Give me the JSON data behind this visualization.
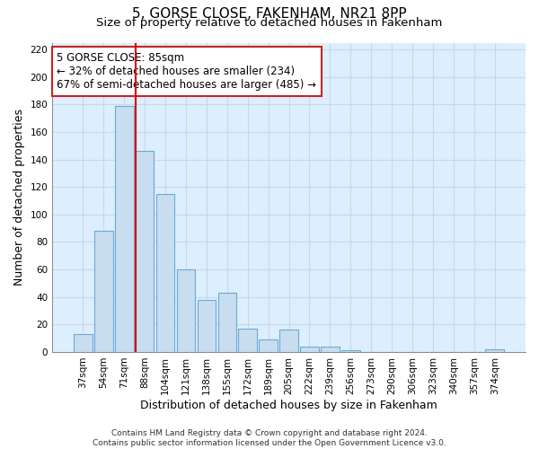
{
  "title": "5, GORSE CLOSE, FAKENHAM, NR21 8PP",
  "subtitle": "Size of property relative to detached houses in Fakenham",
  "xlabel": "Distribution of detached houses by size in Fakenham",
  "ylabel": "Number of detached properties",
  "bar_labels": [
    "37sqm",
    "54sqm",
    "71sqm",
    "88sqm",
    "104sqm",
    "121sqm",
    "138sqm",
    "155sqm",
    "172sqm",
    "189sqm",
    "205sqm",
    "222sqm",
    "239sqm",
    "256sqm",
    "273sqm",
    "290sqm",
    "306sqm",
    "323sqm",
    "340sqm",
    "357sqm",
    "374sqm"
  ],
  "bar_values": [
    13,
    88,
    179,
    146,
    115,
    60,
    38,
    43,
    17,
    9,
    16,
    4,
    4,
    1,
    0,
    0,
    0,
    0,
    0,
    0,
    2
  ],
  "bar_color": "#c9ddf0",
  "bar_edge_color": "#6aaad4",
  "subject_line_color": "#dd0000",
  "subject_line_bar_index": 3,
  "annotation_text": "5 GORSE CLOSE: 85sqm\n← 32% of detached houses are smaller (234)\n67% of semi-detached houses are larger (485) →",
  "annotation_box_color": "#ffffff",
  "annotation_box_edge_color": "#cc2222",
  "ylim": [
    0,
    225
  ],
  "yticks": [
    0,
    20,
    40,
    60,
    80,
    100,
    120,
    140,
    160,
    180,
    200,
    220
  ],
  "footer_line1": "Contains HM Land Registry data © Crown copyright and database right 2024.",
  "footer_line2": "Contains public sector information licensed under the Open Government Licence v3.0.",
  "title_fontsize": 11,
  "subtitle_fontsize": 9.5,
  "axis_label_fontsize": 9,
  "tick_fontsize": 7.5,
  "annotation_fontsize": 8.5,
  "footer_fontsize": 6.5,
  "grid_color": "#c8d8e8",
  "background_color": "#ddeeff"
}
